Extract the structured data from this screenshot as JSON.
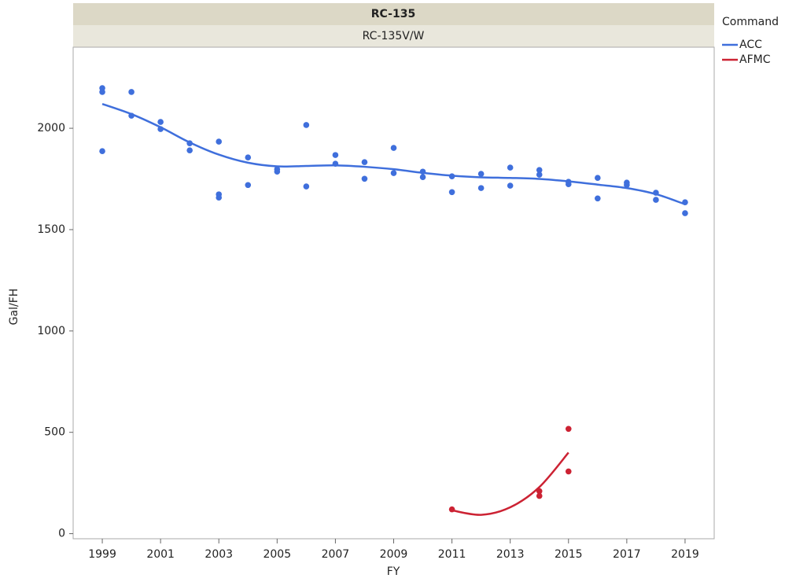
{
  "chart_data": {
    "type": "scatter",
    "title": "RC-135",
    "subtitle": "RC-135V/W",
    "x_label": "FY",
    "y_label": "Gal/FH",
    "legend_title": "Command",
    "legend": "right",
    "xlim": [
      1998,
      2020
    ],
    "xticks": [
      1999,
      2001,
      2003,
      2005,
      2007,
      2009,
      2011,
      2013,
      2015,
      2017,
      2019
    ],
    "ylim": [
      -25,
      2400
    ],
    "yticks": [
      0,
      500,
      1000,
      1500,
      2000
    ],
    "series": [
      {
        "name": "ACC",
        "color": "#3f6fdc",
        "x": [
          1999,
          1999,
          1999,
          2000,
          2000,
          2001,
          2001,
          2002,
          2002,
          2003,
          2003,
          2003,
          2004,
          2004,
          2005,
          2005,
          2006,
          2006,
          2007,
          2007,
          2008,
          2008,
          2009,
          2009,
          2010,
          2010,
          2011,
          2011,
          2012,
          2012,
          2013,
          2013,
          2014,
          2014,
          2015,
          2015,
          2016,
          2016,
          2017,
          2017,
          2018,
          2018,
          2019,
          2019
        ],
        "values": [
          2198,
          2179,
          1887,
          2179,
          2062,
          2031,
          1996,
          1926,
          1891,
          1934,
          1674,
          1658,
          1856,
          1720,
          1798,
          1786,
          2016,
          1713,
          1868,
          1825,
          1833,
          1751,
          1903,
          1779,
          1786,
          1759,
          1763,
          1685,
          1775,
          1705,
          1806,
          1717,
          1794,
          1771,
          1736,
          1724,
          1755,
          1654,
          1732,
          1720,
          1682,
          1647,
          1635,
          1581
        ],
        "trend": {
          "x": [
            1999,
            2000,
            2001,
            2002,
            2003,
            2004,
            2005,
            2006,
            2007,
            2008,
            2009,
            2010,
            2011,
            2012,
            2013,
            2014,
            2015,
            2016,
            2017,
            2018,
            2019
          ],
          "values": [
            2120,
            2070,
            2005,
            1930,
            1870,
            1830,
            1812,
            1814,
            1817,
            1810,
            1798,
            1780,
            1766,
            1758,
            1755,
            1750,
            1738,
            1722,
            1705,
            1675,
            1625
          ]
        }
      },
      {
        "name": "AFMC",
        "color": "#cc2233",
        "x": [
          2011,
          2014,
          2014,
          2015,
          2015
        ],
        "values": [
          120,
          210,
          186,
          517,
          307
        ],
        "trend": {
          "x": [
            2011,
            2012,
            2013,
            2014,
            2015
          ],
          "values": [
            115,
            93,
            130,
            230,
            400
          ]
        }
      }
    ]
  }
}
